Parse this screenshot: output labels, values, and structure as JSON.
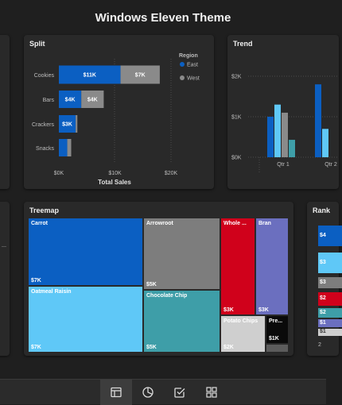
{
  "title": "Windows Eleven Theme",
  "split": {
    "title": "Split",
    "legend_title": "Region",
    "legend": [
      {
        "name": "East",
        "color": "#0b5fc2"
      },
      {
        "name": "West",
        "color": "#8a8a8a"
      }
    ],
    "xlabel": "Total Sales"
  },
  "trend": {
    "title": "Trend"
  },
  "treemap": {
    "title": "Treemap"
  },
  "rank": {
    "title": "Rank"
  },
  "chart_data": [
    {
      "type": "bar",
      "title": "Split",
      "categories": [
        "Cookies",
        "Bars",
        "Crackers",
        "Snacks"
      ],
      "series": [
        {
          "name": "East",
          "values": [
            11000,
            4000,
            3000,
            1500
          ],
          "labels": [
            "$11K",
            "$4K",
            "$3K",
            ""
          ],
          "color": "#0b5fc2"
        },
        {
          "name": "West",
          "values": [
            7000,
            4000,
            300,
            700
          ],
          "labels": [
            "$7K",
            "$4K",
            "",
            ""
          ],
          "color": "#8a8a8a"
        }
      ],
      "xlim": [
        0,
        20000
      ],
      "xticks": [
        "$0K",
        "$10K",
        "$20K"
      ],
      "xlabel": "Total Sales",
      "legend_title": "Region",
      "legend_position": "top-right",
      "stacked": true
    },
    {
      "type": "bar",
      "title": "Trend",
      "categories": [
        "Qtr 1",
        "Qtr 2"
      ],
      "yticks": [
        "$0K",
        "$1K",
        "$2K"
      ],
      "ylim": [
        0,
        2000
      ],
      "series": [
        {
          "values": [
            1000,
            1800
          ],
          "color": "#0b5fc2"
        },
        {
          "values": [
            1300,
            700
          ],
          "color": "#5fc8f7"
        },
        {
          "values": [
            1100,
            0
          ],
          "color": "#8a8a8a"
        },
        {
          "values": [
            430,
            0
          ],
          "color": "#3e9ea8"
        }
      ]
    },
    {
      "type": "treemap",
      "title": "Treemap",
      "items": [
        {
          "name": "Carrot",
          "value_label": "$7K",
          "value": 7000,
          "color": "#0b5fc2"
        },
        {
          "name": "Oatmeal Raisin",
          "value_label": "$7K",
          "value": 7000,
          "color": "#5fc8f7"
        },
        {
          "name": "Arrowroot",
          "value_label": "$5K",
          "value": 5000,
          "color": "#7d7d7d"
        },
        {
          "name": "Chocolate Chip",
          "value_label": "$5K",
          "value": 5000,
          "color": "#3e9ea8"
        },
        {
          "name": "Whole ...",
          "value_label": "$3K",
          "value": 3000,
          "color": "#d0011b"
        },
        {
          "name": "Bran",
          "value_label": "$3K",
          "value": 3000,
          "color": "#6b6fbf"
        },
        {
          "name": "Potato Chips",
          "value_label": "$2K",
          "value": 2000,
          "color": "#cfcfcf"
        },
        {
          "name": "Pre...",
          "value_label": "$1K",
          "value": 1000,
          "color": "#0a0a0a"
        },
        {
          "name": "",
          "value_label": "",
          "value": 300,
          "color": "#5c5c5c"
        }
      ]
    }
  ],
  "nav": [
    {
      "icon": "report-page-icon",
      "active": true
    },
    {
      "icon": "pie-chart-icon",
      "active": false
    },
    {
      "icon": "checkbox-icon",
      "active": false
    },
    {
      "icon": "grid-icon",
      "active": false
    }
  ]
}
